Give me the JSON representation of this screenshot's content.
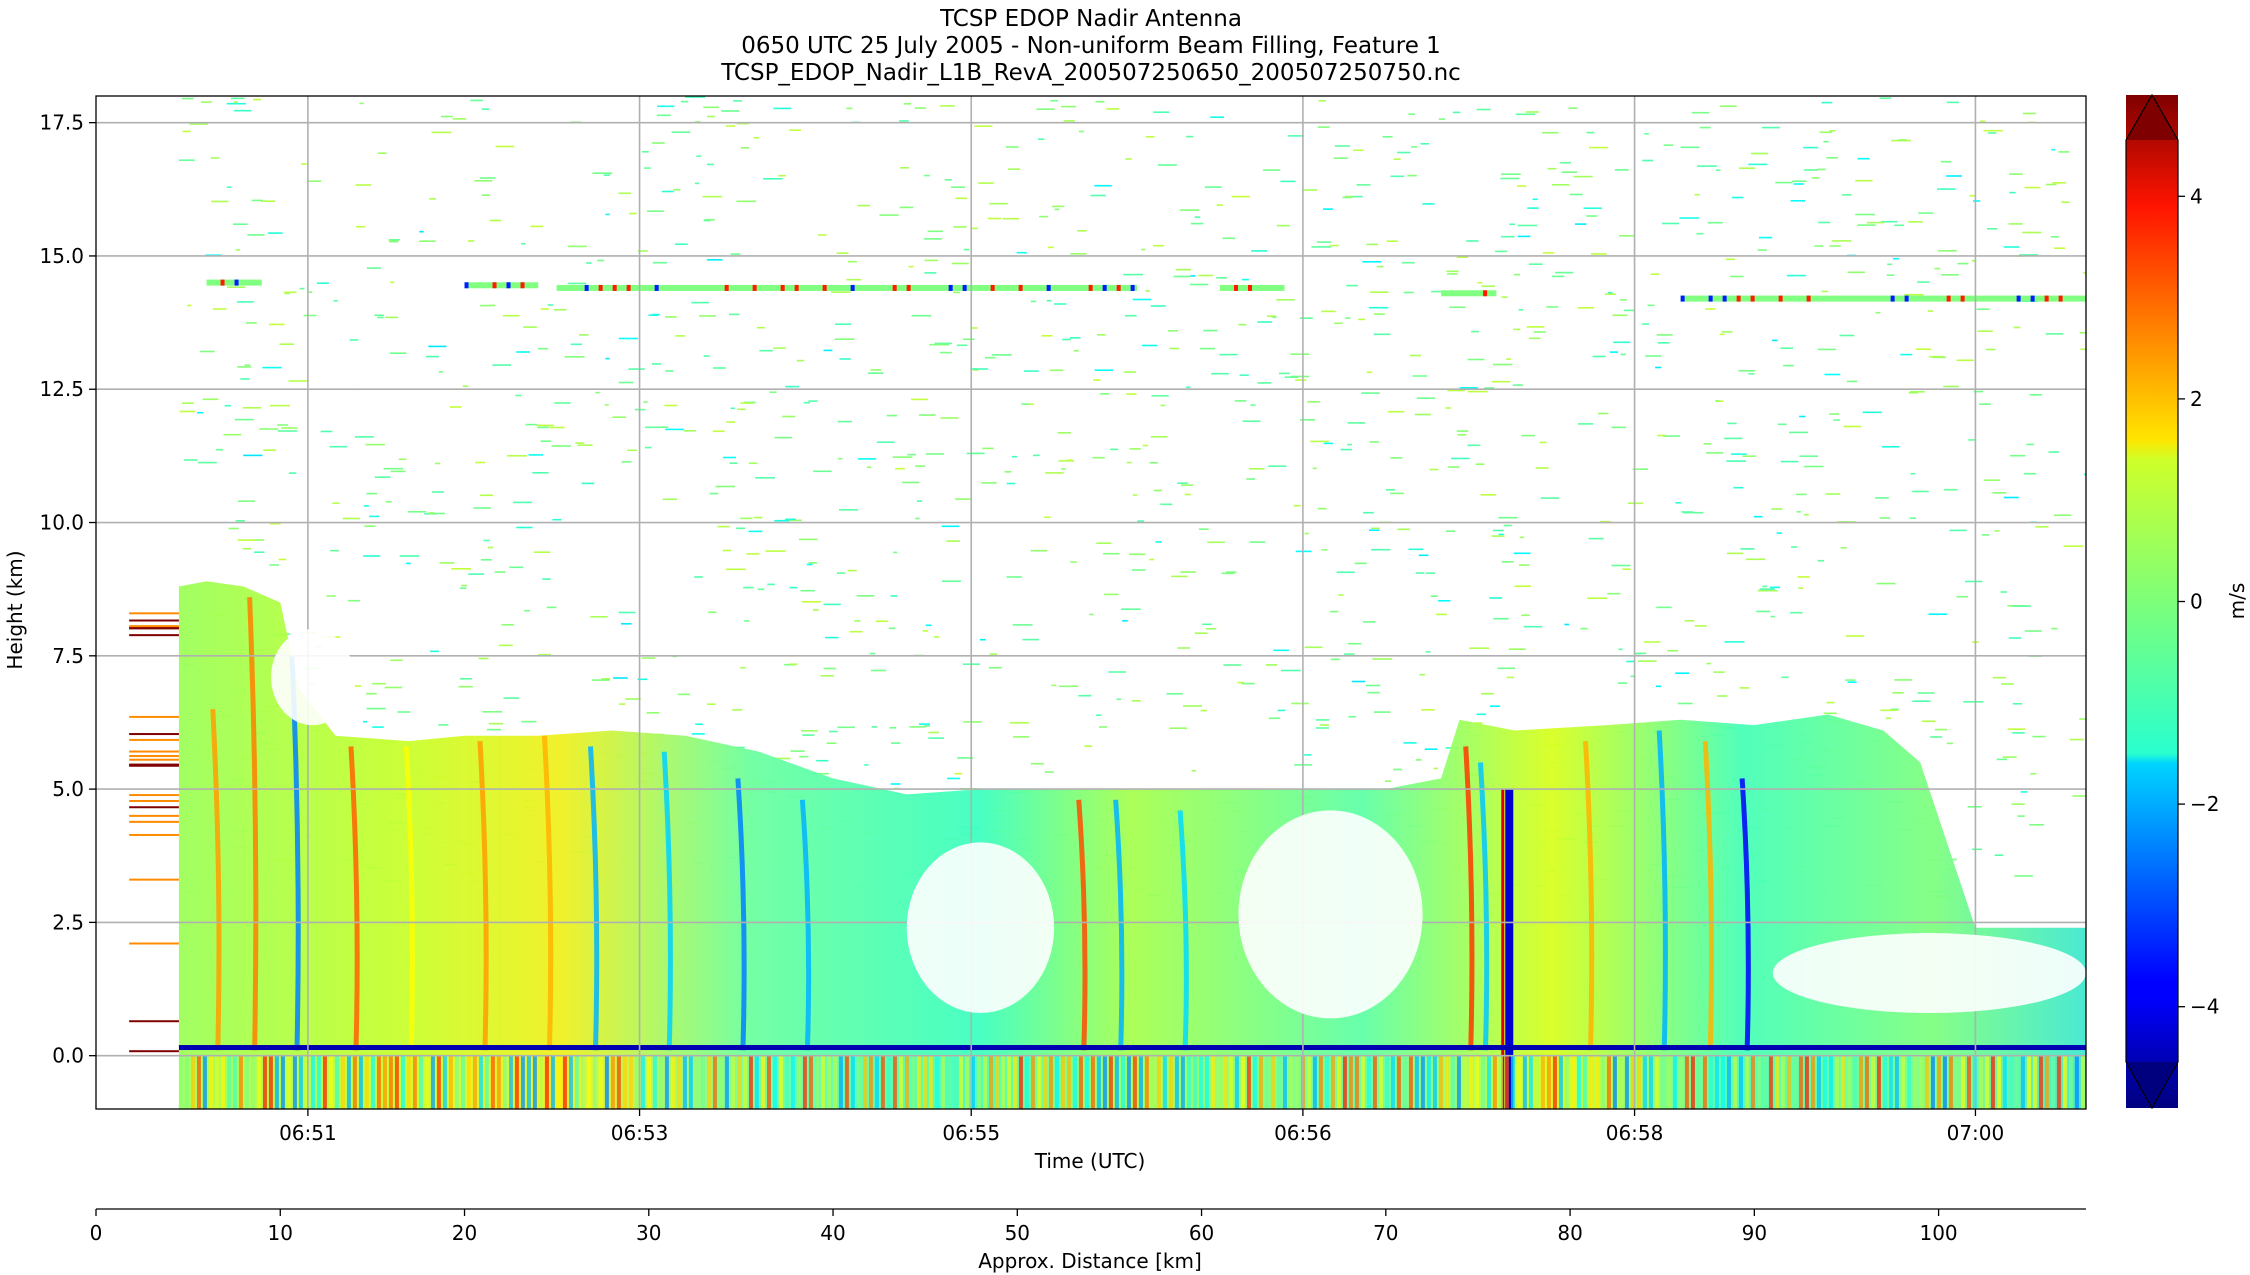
{
  "chart_data": {
    "type": "heatmap",
    "title_lines": [
      "TCSP EDOP Nadir Antenna",
      "0650 UTC 25 July 2005 - Non-uniform Beam Filling, Feature 1",
      "TCSP_EDOP_Nadir_L1B_RevA_200507250650_200507250750.nc"
    ],
    "xlabel": "Time (UTC)",
    "ylabel": "Height (km)",
    "x_ticks": [
      "06:51",
      "06:53",
      "06:55",
      "06:56",
      "06:58",
      "07:00"
    ],
    "y_ticks": [
      "0.0",
      "2.5",
      "5.0",
      "7.5",
      "10.0",
      "12.5",
      "15.0",
      "17.5"
    ],
    "ylim": [
      -1,
      18
    ],
    "xlim_km": [
      0,
      108
    ],
    "grid": true,
    "secondary_x_axis": {
      "label": "Approx. Distance [km]",
      "ticks": [
        "0",
        "10",
        "20",
        "30",
        "40",
        "50",
        "60",
        "70",
        "80",
        "90",
        "100"
      ],
      "values": [
        0,
        10,
        20,
        30,
        40,
        50,
        60,
        70,
        80,
        90,
        100
      ]
    },
    "colorbar": {
      "label": "m/s",
      "range": [
        -5,
        5
      ],
      "ticks": [
        "−4",
        "−2",
        "0",
        "2",
        "4"
      ],
      "tick_values": [
        -4,
        -2,
        0,
        2,
        4
      ],
      "colormap": "jet",
      "extend": "both"
    },
    "features": {
      "data_start_km": 4.5,
      "cloud_top_profile_km": [
        [
          4.5,
          8.8
        ],
        [
          6,
          8.9
        ],
        [
          8,
          8.8
        ],
        [
          10,
          8.5
        ],
        [
          11,
          6.9
        ],
        [
          13,
          6.0
        ],
        [
          17,
          5.9
        ],
        [
          20,
          6.0
        ],
        [
          24,
          6.0
        ],
        [
          28,
          6.1
        ],
        [
          32,
          6.0
        ],
        [
          36,
          5.7
        ],
        [
          40,
          5.2
        ],
        [
          44,
          4.9
        ],
        [
          48,
          5.0
        ],
        [
          52,
          5.0
        ],
        [
          56,
          5.0
        ],
        [
          60,
          5.0
        ],
        [
          66,
          5.0
        ],
        [
          70,
          5.0
        ],
        [
          73,
          5.2
        ],
        [
          74,
          6.3
        ],
        [
          77,
          6.1
        ],
        [
          82,
          6.2
        ],
        [
          86,
          6.3
        ],
        [
          90,
          6.2
        ],
        [
          94,
          6.4
        ],
        [
          97,
          6.1
        ],
        [
          99,
          5.5
        ],
        [
          102,
          2.4
        ],
        [
          108,
          2.4
        ]
      ],
      "anvil_layer_segments_km": [
        [
          6,
          9,
          14.5
        ],
        [
          20,
          24,
          14.45
        ],
        [
          25,
          56.5,
          14.4
        ],
        [
          61,
          64.5,
          14.4
        ],
        [
          73,
          76,
          14.3
        ],
        [
          86,
          108,
          14.2
        ]
      ],
      "updraft_core_km": 76.7,
      "ground_height_km": 0.0
    }
  }
}
